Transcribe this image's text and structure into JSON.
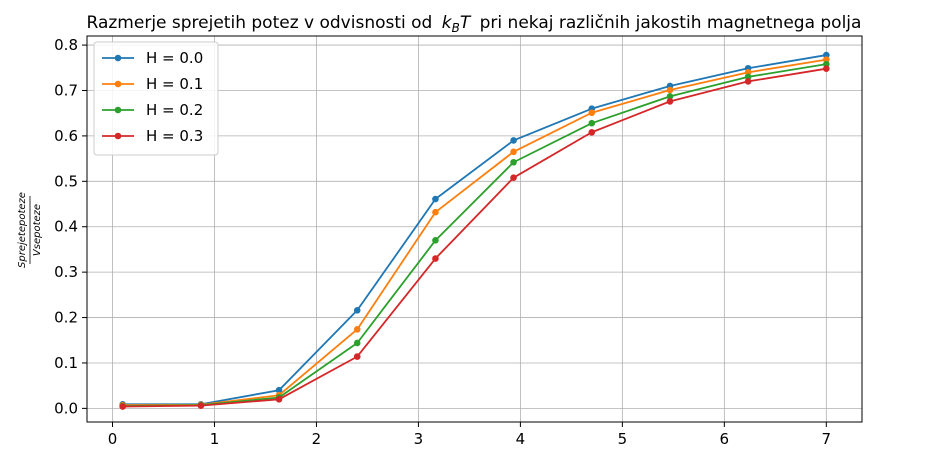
{
  "chart_data": {
    "type": "line",
    "title": "Razmerje sprejetih potez v odvisnosti od",
    "title_math_main": "k",
    "title_math_sub": "B",
    "title_math_tail": "T",
    "title_suffix": "pri nekaj različnih jakostih magnetnega polja",
    "ylabel_numerator": "Sprejetepoteze",
    "ylabel_denominator": "Vsepoteze",
    "xlim": [
      -0.25,
      7.35
    ],
    "ylim": [
      -0.03,
      0.82
    ],
    "xticks": [
      0,
      1,
      2,
      3,
      4,
      5,
      6,
      7
    ],
    "yticks": [
      0.0,
      0.1,
      0.2,
      0.3,
      0.4,
      0.5,
      0.6,
      0.7,
      0.8
    ],
    "xtick_labels": [
      "0",
      "1",
      "2",
      "3",
      "4",
      "5",
      "6",
      "7"
    ],
    "ytick_labels": [
      "0.0",
      "0.1",
      "0.2",
      "0.3",
      "0.4",
      "0.5",
      "0.6",
      "0.7",
      "0.8"
    ],
    "grid": true,
    "legend_position": "top-left",
    "x": [
      0.1,
      0.867,
      1.633,
      2.4,
      3.167,
      3.933,
      4.7,
      5.467,
      6.233,
      7.0
    ],
    "series": [
      {
        "name": "H = 0.0",
        "color": "#1f77b4",
        "values": [
          0.009,
          0.009,
          0.04,
          0.216,
          0.461,
          0.59,
          0.66,
          0.71,
          0.749,
          0.778
        ]
      },
      {
        "name": "H = 0.1",
        "color": "#ff7f0e",
        "values": [
          0.007,
          0.008,
          0.029,
          0.174,
          0.432,
          0.565,
          0.651,
          0.701,
          0.74,
          0.768
        ]
      },
      {
        "name": "H = 0.2",
        "color": "#2ca02c",
        "values": [
          0.005,
          0.007,
          0.024,
          0.144,
          0.37,
          0.542,
          0.628,
          0.687,
          0.73,
          0.758
        ]
      },
      {
        "name": "H = 0.3",
        "color": "#d62728",
        "values": [
          0.004,
          0.006,
          0.02,
          0.114,
          0.33,
          0.508,
          0.608,
          0.676,
          0.72,
          0.748
        ]
      }
    ]
  }
}
